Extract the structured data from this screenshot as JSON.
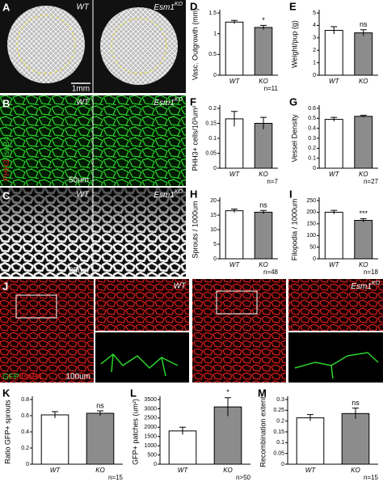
{
  "figure_panels": {
    "A": {
      "letter": "A",
      "wt": "WT",
      "ko": "Esm1",
      "ko_sup": "KO",
      "scale": "1mm"
    },
    "B": {
      "letter": "B",
      "wt": "WT",
      "ko": "Esm1",
      "ko_sup": "KO",
      "stain_red": "PHH3",
      "stain_green": "/IsoB4",
      "scale": "50um"
    },
    "C": {
      "letter": "C",
      "wt": "WT",
      "ko": "Esm1",
      "ko_sup": "KO",
      "scale": "25um"
    },
    "J": {
      "letter": "J",
      "wt": "WT",
      "ko": "Esm1",
      "ko_sup": "KO",
      "stain_green": "GFP",
      "stain_red": "/IsoB4",
      "scale": "100um"
    }
  },
  "chart_data": [
    {
      "type": "bar",
      "panel": "D",
      "ylabel": "Vasc. Outgrowth (mm)",
      "categories": [
        "WT",
        "KO"
      ],
      "values": [
        1.28,
        1.15
      ],
      "errors": [
        0.04,
        0.05
      ],
      "colors": [
        "#ffffff",
        "#8c8c8c"
      ],
      "ylim": [
        0,
        1.5
      ],
      "yticks": [
        0,
        0.5,
        1,
        1.5
      ],
      "annotation": "*",
      "n": "n=11"
    },
    {
      "type": "bar",
      "panel": "E",
      "ylabel": "Weight/pup (g)",
      "categories": [
        "WT",
        "KO"
      ],
      "values": [
        3.6,
        3.4
      ],
      "errors": [
        0.3,
        0.25
      ],
      "colors": [
        "#ffffff",
        "#8c8c8c"
      ],
      "ylim": [
        0,
        5
      ],
      "yticks": [
        0,
        1,
        2,
        3,
        4,
        5
      ],
      "annotation": "ns"
    },
    {
      "type": "bar",
      "panel": "F",
      "ylabel": "PHH3+ cells/10³um²",
      "categories": [
        "WT",
        "KO"
      ],
      "values": [
        0.165,
        0.15
      ],
      "errors": [
        0.025,
        0.02
      ],
      "colors": [
        "#ffffff",
        "#8c8c8c"
      ],
      "ylim": [
        0,
        0.2
      ],
      "yticks": [
        0,
        0.05,
        0.1,
        0.15,
        0.2
      ],
      "n": "n=7"
    },
    {
      "type": "bar",
      "panel": "G",
      "ylabel": "Vessel Density",
      "categories": [
        "WT",
        "KO"
      ],
      "values": [
        0.49,
        0.52
      ],
      "errors": [
        0.02,
        0.01
      ],
      "colors": [
        "#ffffff",
        "#8c8c8c"
      ],
      "ylim": [
        0,
        0.6
      ],
      "yticks": [
        0,
        0.1,
        0.2,
        0.3,
        0.4,
        0.5,
        0.6
      ],
      "n": "n=27"
    },
    {
      "type": "bar",
      "panel": "H",
      "ylabel": "Sprouts / 1000um",
      "categories": [
        "WT",
        "KO"
      ],
      "values": [
        16.5,
        16
      ],
      "errors": [
        0.6,
        0.6
      ],
      "colors": [
        "#ffffff",
        "#8c8c8c"
      ],
      "ylim": [
        0,
        20
      ],
      "yticks": [
        0,
        5,
        10,
        15,
        20
      ],
      "annotation": "ns",
      "n": "n=48"
    },
    {
      "type": "bar",
      "panel": "I",
      "ylabel": "Filopodia / 1000um",
      "categories": [
        "WT",
        "KO"
      ],
      "values": [
        200,
        165
      ],
      "errors": [
        8,
        7
      ],
      "colors": [
        "#ffffff",
        "#8c8c8c"
      ],
      "ylim": [
        0,
        250
      ],
      "yticks": [
        0,
        50,
        100,
        150,
        200,
        250
      ],
      "annotation": "***",
      "n": "n=18"
    },
    {
      "type": "bar",
      "panel": "K",
      "ylabel": "Ratio GFP+ sprouts",
      "categories": [
        "WT",
        "KO"
      ],
      "values": [
        0.61,
        0.63
      ],
      "errors": [
        0.04,
        0.03
      ],
      "colors": [
        "#ffffff",
        "#8c8c8c"
      ],
      "ylim": [
        0,
        0.8
      ],
      "yticks": [
        0,
        0.2,
        0.4,
        0.6,
        0.8
      ],
      "annotation": "ns",
      "n": "n=15"
    },
    {
      "type": "bar",
      "panel": "L",
      "ylabel": "GFP+ patches (um²)",
      "categories": [
        "WT",
        "KO"
      ],
      "values": [
        1800,
        3100
      ],
      "errors": [
        200,
        500
      ],
      "colors": [
        "#ffffff",
        "#8c8c8c"
      ],
      "ylim": [
        0,
        3500
      ],
      "yticks": [
        0,
        500,
        1000,
        1500,
        2000,
        2500,
        3000,
        3500
      ],
      "annotation": "*",
      "n": "n>50"
    },
    {
      "type": "bar",
      "panel": "M",
      "ylabel": "Recombination extent",
      "categories": [
        "WT",
        "KO"
      ],
      "values": [
        0.215,
        0.235
      ],
      "errors": [
        0.015,
        0.025
      ],
      "colors": [
        "#ffffff",
        "#8c8c8c"
      ],
      "ylim": [
        0,
        0.3
      ],
      "yticks": [
        0,
        0.05,
        0.1,
        0.15,
        0.2,
        0.25,
        0.3
      ],
      "annotation": "ns",
      "n": "n=15"
    }
  ]
}
